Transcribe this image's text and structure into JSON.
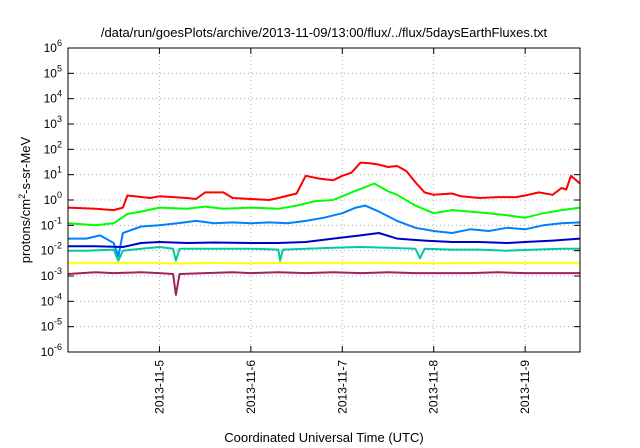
{
  "chart_data": {
    "type": "line",
    "title": "/data/run/goesPlots/archive/2013-11-09/13:00/flux/../flux/5daysEarthFluxes.txt",
    "xlabel": "Coordinated Universal Time (UTC)",
    "ylabel": {
      "prefix": "protons/cm",
      "sup": "2",
      "suffix": "-s-sr-MeV"
    },
    "yscale": "log",
    "ylim_exp": [
      -6,
      6
    ],
    "xlim_days": [
      4.0,
      9.6
    ],
    "grid": true,
    "x_ticks": [
      {
        "day": 5,
        "label": "2013-11-5"
      },
      {
        "day": 6,
        "label": "2013-11-6"
      },
      {
        "day": 7,
        "label": "2013-11-7"
      },
      {
        "day": 8,
        "label": "2013-11-8"
      },
      {
        "day": 9,
        "label": "2013-11-9"
      }
    ],
    "y_ticks": [
      {
        "exp": 6,
        "base": "10",
        "sup": "6"
      },
      {
        "exp": 5,
        "base": "10",
        "sup": "5"
      },
      {
        "exp": 4,
        "base": "10",
        "sup": "4"
      },
      {
        "exp": 3,
        "base": "10",
        "sup": "3"
      },
      {
        "exp": 2,
        "base": "10",
        "sup": "2"
      },
      {
        "exp": 1,
        "base": "10",
        "sup": "1"
      },
      {
        "exp": 0,
        "base": "10",
        "sup": "0"
      },
      {
        "exp": -1,
        "base": "10",
        "sup": "-1"
      },
      {
        "exp": -2,
        "base": "10",
        "sup": "-2"
      },
      {
        "exp": -3,
        "base": "10",
        "sup": "-3"
      },
      {
        "exp": -4,
        "base": "10",
        "sup": "-4"
      },
      {
        "exp": -5,
        "base": "10",
        "sup": "-5"
      },
      {
        "exp": -6,
        "base": "10",
        "sup": "-6"
      }
    ],
    "series": [
      {
        "color": "#ff0000",
        "points": [
          [
            4.0,
            0.5
          ],
          [
            4.3,
            0.45
          ],
          [
            4.5,
            0.4
          ],
          [
            4.6,
            0.5
          ],
          [
            4.65,
            1.5
          ],
          [
            4.9,
            1.2
          ],
          [
            5.0,
            1.4
          ],
          [
            5.3,
            1.2
          ],
          [
            5.4,
            1.1
          ],
          [
            5.5,
            2.0
          ],
          [
            5.7,
            2.0
          ],
          [
            5.8,
            1.2
          ],
          [
            6.0,
            1.1
          ],
          [
            6.2,
            1.0
          ],
          [
            6.3,
            1.2
          ],
          [
            6.5,
            1.8
          ],
          [
            6.6,
            9.0
          ],
          [
            6.75,
            7.0
          ],
          [
            6.9,
            6.0
          ],
          [
            7.0,
            9.0
          ],
          [
            7.1,
            12.0
          ],
          [
            7.2,
            30.0
          ],
          [
            7.3,
            28.0
          ],
          [
            7.4,
            25.0
          ],
          [
            7.5,
            20.0
          ],
          [
            7.6,
            22.0
          ],
          [
            7.7,
            14.0
          ],
          [
            7.8,
            5.0
          ],
          [
            7.9,
            2.0
          ],
          [
            8.0,
            1.6
          ],
          [
            8.2,
            1.8
          ],
          [
            8.3,
            1.4
          ],
          [
            8.5,
            1.2
          ],
          [
            8.7,
            1.3
          ],
          [
            8.9,
            1.3
          ],
          [
            9.0,
            1.5
          ],
          [
            9.15,
            2.0
          ],
          [
            9.3,
            1.6
          ],
          [
            9.4,
            3.0
          ],
          [
            9.45,
            2.6
          ],
          [
            9.5,
            9.0
          ],
          [
            9.6,
            4.5
          ]
        ]
      },
      {
        "color": "#00ff00",
        "points": [
          [
            4.0,
            0.12
          ],
          [
            4.3,
            0.1
          ],
          [
            4.5,
            0.12
          ],
          [
            4.65,
            0.28
          ],
          [
            4.8,
            0.35
          ],
          [
            5.0,
            0.5
          ],
          [
            5.3,
            0.45
          ],
          [
            5.5,
            0.55
          ],
          [
            5.7,
            0.45
          ],
          [
            6.0,
            0.5
          ],
          [
            6.3,
            0.45
          ],
          [
            6.5,
            0.6
          ],
          [
            6.7,
            0.9
          ],
          [
            6.9,
            1.0
          ],
          [
            7.0,
            1.4
          ],
          [
            7.1,
            2.0
          ],
          [
            7.25,
            3.2
          ],
          [
            7.35,
            4.5
          ],
          [
            7.5,
            2.2
          ],
          [
            7.6,
            1.6
          ],
          [
            7.8,
            0.6
          ],
          [
            8.0,
            0.3
          ],
          [
            8.2,
            0.4
          ],
          [
            8.4,
            0.35
          ],
          [
            8.6,
            0.3
          ],
          [
            8.8,
            0.25
          ],
          [
            9.0,
            0.2
          ],
          [
            9.2,
            0.3
          ],
          [
            9.4,
            0.4
          ],
          [
            9.6,
            0.5
          ]
        ]
      },
      {
        "color": "#0080ff",
        "points": [
          [
            4.0,
            0.03
          ],
          [
            4.2,
            0.03
          ],
          [
            4.35,
            0.04
          ],
          [
            4.5,
            0.02
          ],
          [
            4.55,
            0.006
          ],
          [
            4.6,
            0.05
          ],
          [
            4.8,
            0.09
          ],
          [
            5.0,
            0.1
          ],
          [
            5.2,
            0.12
          ],
          [
            5.4,
            0.15
          ],
          [
            5.6,
            0.12
          ],
          [
            5.8,
            0.13
          ],
          [
            6.0,
            0.12
          ],
          [
            6.2,
            0.13
          ],
          [
            6.4,
            0.12
          ],
          [
            6.6,
            0.15
          ],
          [
            6.8,
            0.2
          ],
          [
            7.0,
            0.3
          ],
          [
            7.15,
            0.5
          ],
          [
            7.25,
            0.6
          ],
          [
            7.4,
            0.35
          ],
          [
            7.6,
            0.15
          ],
          [
            7.8,
            0.08
          ],
          [
            8.0,
            0.06
          ],
          [
            8.2,
            0.05
          ],
          [
            8.4,
            0.07
          ],
          [
            8.6,
            0.06
          ],
          [
            8.8,
            0.08
          ],
          [
            9.0,
            0.07
          ],
          [
            9.2,
            0.1
          ],
          [
            9.4,
            0.12
          ],
          [
            9.6,
            0.13
          ]
        ]
      },
      {
        "color": "#0000c8",
        "points": [
          [
            4.0,
            0.015
          ],
          [
            4.3,
            0.015
          ],
          [
            4.6,
            0.014
          ],
          [
            4.8,
            0.02
          ],
          [
            5.0,
            0.022
          ],
          [
            5.3,
            0.02
          ],
          [
            5.6,
            0.021
          ],
          [
            6.0,
            0.02
          ],
          [
            6.3,
            0.02
          ],
          [
            6.6,
            0.022
          ],
          [
            6.9,
            0.03
          ],
          [
            7.2,
            0.04
          ],
          [
            7.4,
            0.05
          ],
          [
            7.6,
            0.03
          ],
          [
            7.9,
            0.025
          ],
          [
            8.2,
            0.022
          ],
          [
            8.5,
            0.022
          ],
          [
            8.8,
            0.02
          ],
          [
            9.0,
            0.022
          ],
          [
            9.3,
            0.025
          ],
          [
            9.6,
            0.03
          ]
        ]
      },
      {
        "color": "#00c8a0",
        "points": [
          [
            4.0,
            0.01
          ],
          [
            4.2,
            0.01
          ],
          [
            4.5,
            0.011
          ],
          [
            4.55,
            0.004
          ],
          [
            4.6,
            0.01
          ],
          [
            4.8,
            0.012
          ],
          [
            5.0,
            0.014
          ],
          [
            5.15,
            0.012
          ],
          [
            5.18,
            0.004
          ],
          [
            5.22,
            0.012
          ],
          [
            5.5,
            0.012
          ],
          [
            5.8,
            0.012
          ],
          [
            6.0,
            0.012
          ],
          [
            6.3,
            0.011
          ],
          [
            6.32,
            0.004
          ],
          [
            6.35,
            0.011
          ],
          [
            6.6,
            0.012
          ],
          [
            6.9,
            0.013
          ],
          [
            7.2,
            0.014
          ],
          [
            7.5,
            0.013
          ],
          [
            7.8,
            0.012
          ],
          [
            7.85,
            0.005
          ],
          [
            7.9,
            0.012
          ],
          [
            8.2,
            0.011
          ],
          [
            8.5,
            0.011
          ],
          [
            8.8,
            0.01
          ],
          [
            9.1,
            0.011
          ],
          [
            9.4,
            0.012
          ],
          [
            9.6,
            0.012
          ]
        ]
      },
      {
        "color": "#ffff00",
        "points": [
          [
            4.0,
            0.0033
          ],
          [
            4.5,
            0.0033
          ],
          [
            5.0,
            0.0033
          ],
          [
            5.18,
            0.0031
          ],
          [
            5.5,
            0.0033
          ],
          [
            6.0,
            0.0032
          ],
          [
            6.5,
            0.0033
          ],
          [
            7.0,
            0.0033
          ],
          [
            7.5,
            0.0033
          ],
          [
            8.0,
            0.0032
          ],
          [
            8.5,
            0.0033
          ],
          [
            9.0,
            0.0033
          ],
          [
            9.6,
            0.0033
          ]
        ]
      },
      {
        "color": "#a02060",
        "points": [
          [
            4.0,
            0.0012
          ],
          [
            4.3,
            0.0014
          ],
          [
            4.5,
            0.0013
          ],
          [
            4.8,
            0.0014
          ],
          [
            5.0,
            0.0013
          ],
          [
            5.15,
            0.0012
          ],
          [
            5.18,
            0.00018
          ],
          [
            5.22,
            0.0012
          ],
          [
            5.5,
            0.0013
          ],
          [
            5.8,
            0.0014
          ],
          [
            6.0,
            0.0013
          ],
          [
            6.3,
            0.0014
          ],
          [
            6.6,
            0.0013
          ],
          [
            6.9,
            0.0014
          ],
          [
            7.2,
            0.0013
          ],
          [
            7.5,
            0.0014
          ],
          [
            7.8,
            0.0013
          ],
          [
            8.1,
            0.0013
          ],
          [
            8.4,
            0.0013
          ],
          [
            8.7,
            0.0014
          ],
          [
            9.0,
            0.0013
          ],
          [
            9.3,
            0.0013
          ],
          [
            9.6,
            0.0013
          ]
        ]
      }
    ]
  }
}
